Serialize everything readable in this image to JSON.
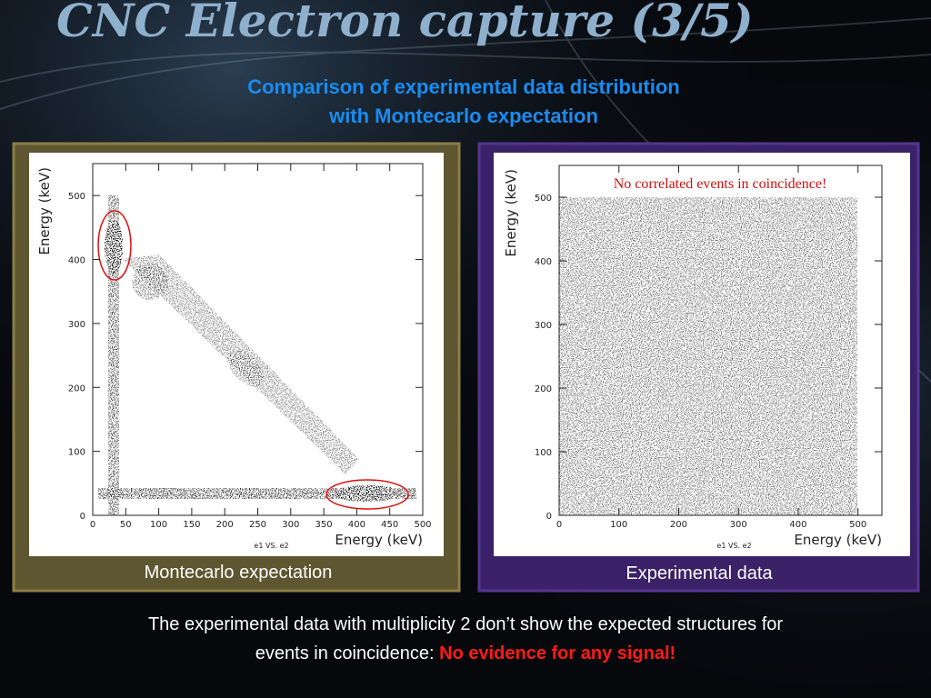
{
  "slide": {
    "title": "CNC Electron capture (3/5)",
    "subtitle": [
      "Comparison of experimental data distribution",
      "with Montecarlo expectation"
    ],
    "footer": {
      "lines": [
        "The experimental data with multiplicity 2 don’t show the expected structures for",
        "events in coincidence:"
      ],
      "highlight": "No evidence for any signal!"
    }
  },
  "chart_data": [
    {
      "type": "scatter",
      "caption": "Montecarlo expectation",
      "plot_label": "e1 VS. e2",
      "x_label": "Energy (keV)",
      "y_label": "Energy (keV)",
      "xlim": [
        0,
        500
      ],
      "xticks": [
        0,
        50,
        100,
        150,
        200,
        250,
        300,
        350,
        400,
        450,
        500
      ],
      "ylim": [
        0,
        550
      ],
      "yticks": [
        0,
        100,
        200,
        300,
        400,
        500
      ]
    },
    {
      "type": "scatter",
      "caption": "Experimental data",
      "plot_label": "e1 VS. e2",
      "annotation": "No correlated events in coincidence!",
      "x_label": "Energy (keV)",
      "y_label": "Energy (keV)",
      "xlim": [
        0,
        540
      ],
      "xticks": [
        0,
        100,
        200,
        300,
        400,
        500
      ],
      "ylim": [
        0,
        550
      ],
      "yticks": [
        0,
        100,
        200,
        300,
        400,
        500
      ]
    }
  ]
}
